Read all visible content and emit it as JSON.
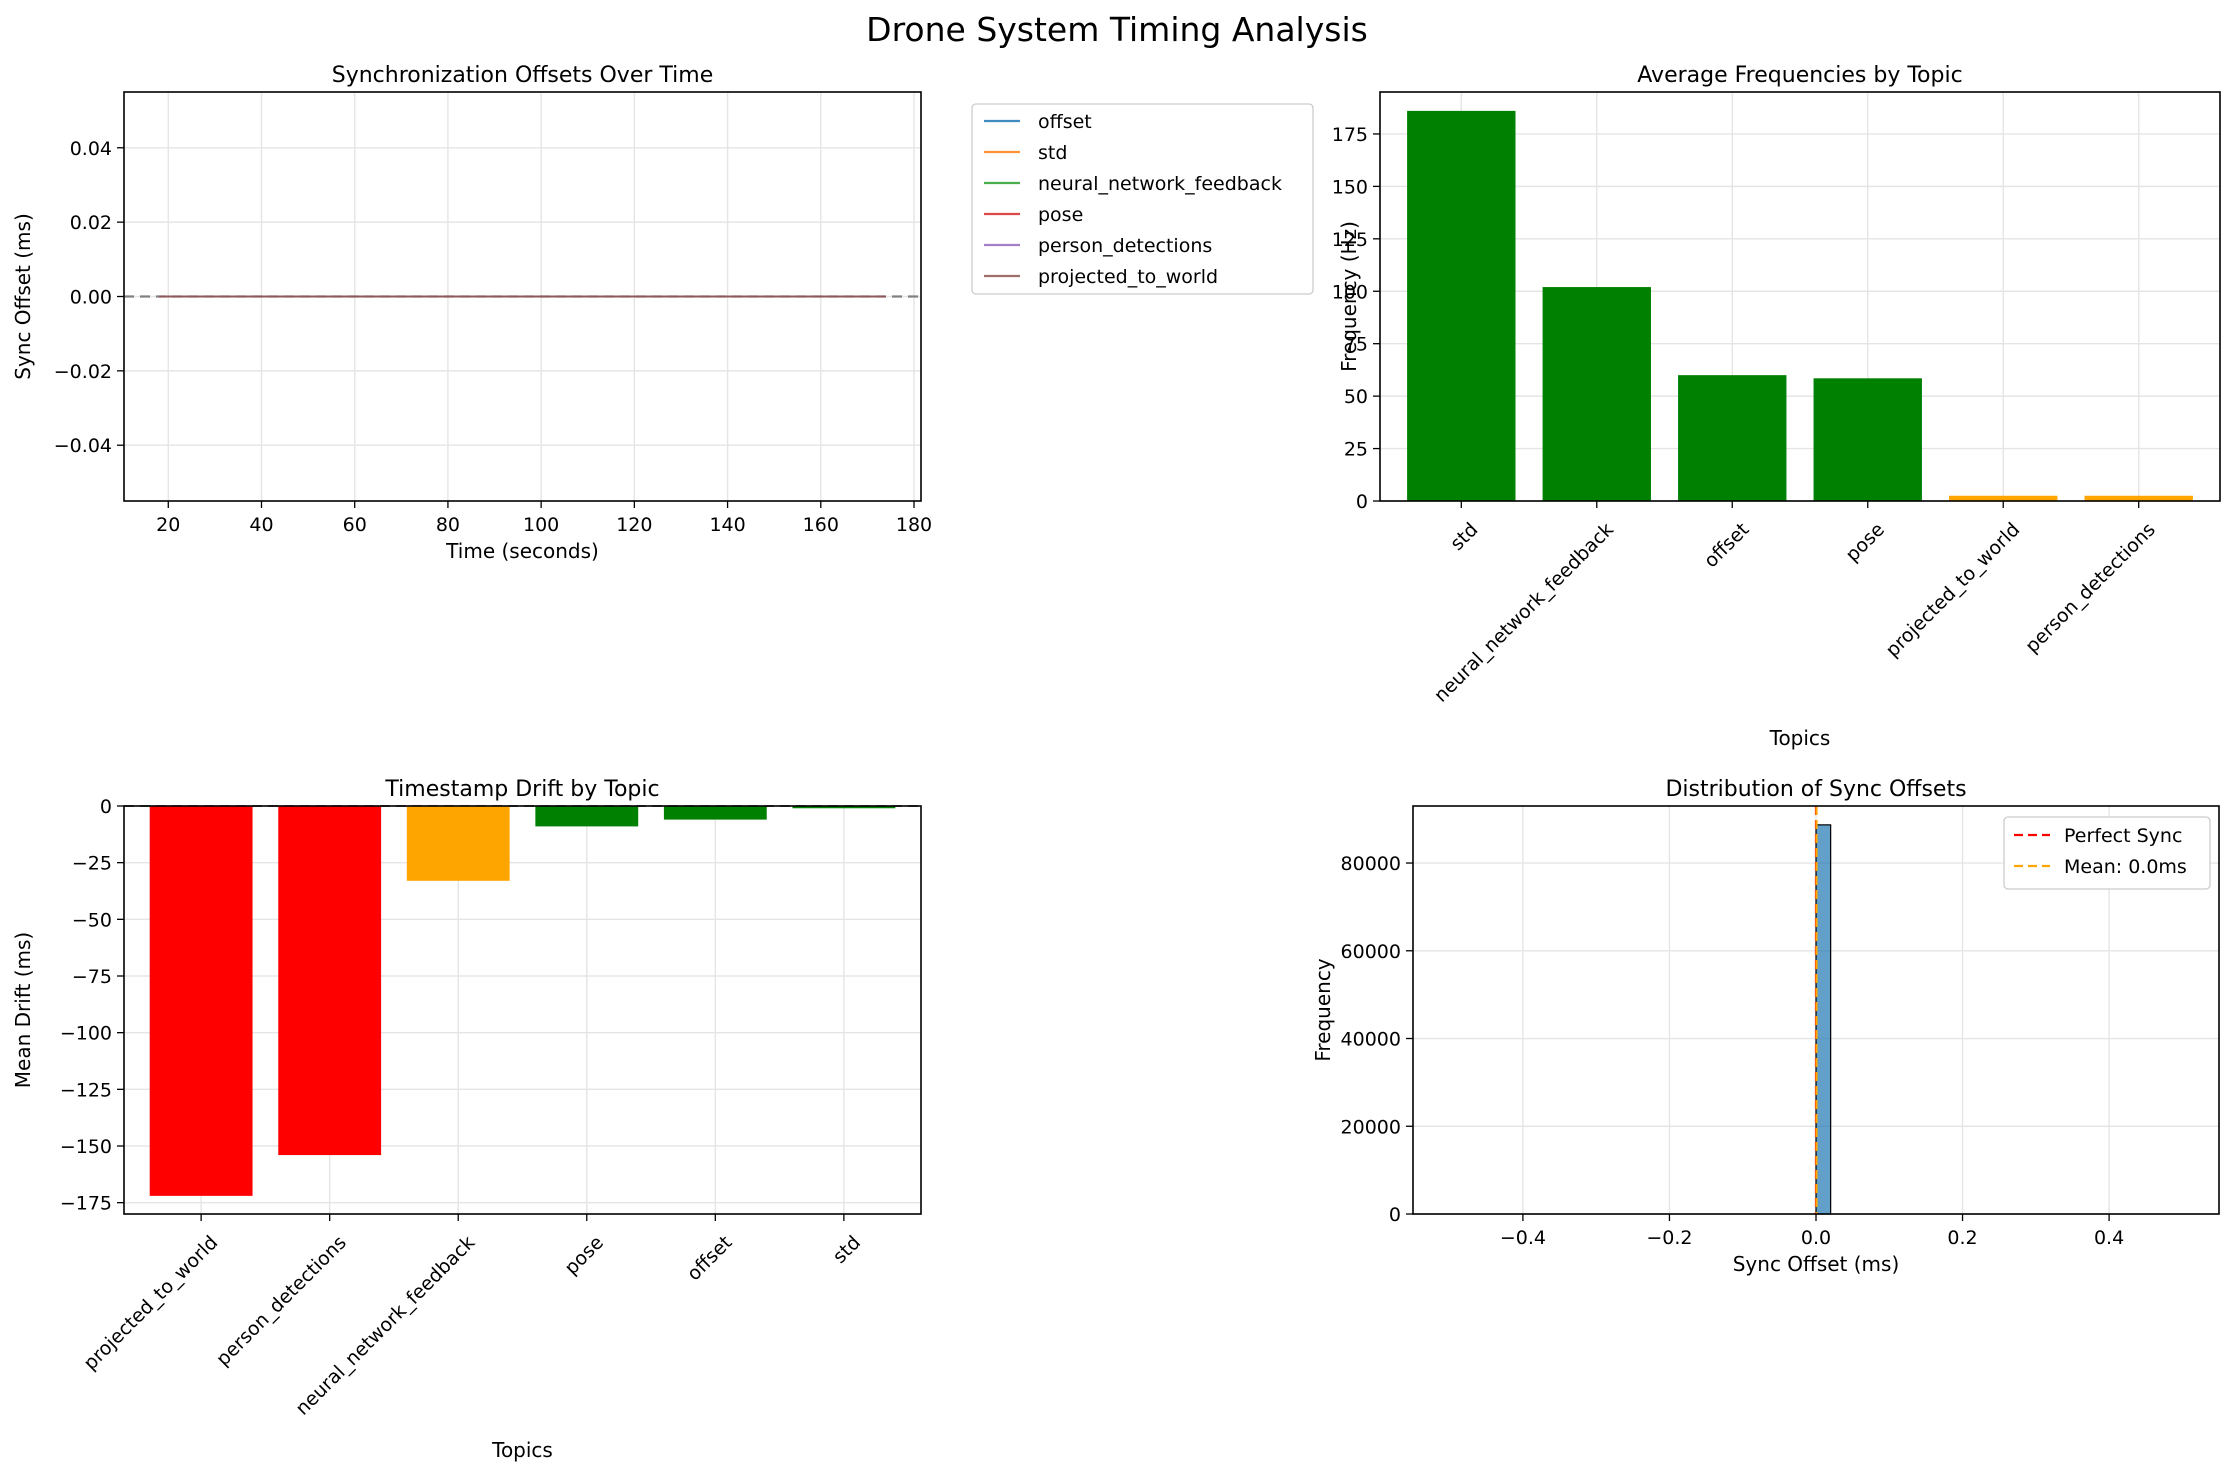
{
  "figure": {
    "title": "Drone System Timing Analysis"
  },
  "colors": {
    "green": "#008000",
    "orange": "#FFA500",
    "red": "#FF0000",
    "grid": "#e5e5e5",
    "hist": "#1f77b4"
  },
  "chart_data": [
    {
      "id": "sync_offsets",
      "type": "line",
      "title": "Synchronization Offsets Over Time",
      "xlabel": "Time (seconds)",
      "ylabel": "Sync Offset (ms)",
      "xlim": [
        10.5,
        181.5
      ],
      "ylim": [
        -0.055,
        0.055
      ],
      "xticks": [
        20,
        40,
        60,
        80,
        100,
        120,
        140,
        160,
        180
      ],
      "yticks": [
        -0.04,
        -0.02,
        0.0,
        0.02,
        0.04
      ],
      "ytick_labels": [
        "−0.04",
        "−0.02",
        "0.00",
        "0.02",
        "0.04"
      ],
      "reference_line": {
        "y": 0,
        "style": "dashed",
        "color": "#808080"
      },
      "grid": true,
      "legend": "outside-right",
      "series": [
        {
          "name": "offset",
          "color": "#1f77b4",
          "x": [
            18,
            174
          ],
          "y": [
            0,
            0
          ]
        },
        {
          "name": "std",
          "color": "#ff7f0e",
          "x": [
            18,
            174
          ],
          "y": [
            0,
            0
          ]
        },
        {
          "name": "neural_network_feedback",
          "color": "#2ca02c",
          "x": [
            18,
            174
          ],
          "y": [
            0,
            0
          ]
        },
        {
          "name": "pose",
          "color": "#d62728",
          "x": [
            18,
            174
          ],
          "y": [
            0,
            0
          ]
        },
        {
          "name": "person_detections",
          "color": "#9467bd",
          "x": [
            18,
            174
          ],
          "y": [
            0,
            0
          ]
        },
        {
          "name": "projected_to_world",
          "color": "#8c564b",
          "x": [
            18,
            174
          ],
          "y": [
            0,
            0
          ]
        }
      ]
    },
    {
      "id": "avg_freq",
      "type": "bar",
      "title": "Average Frequencies by Topic",
      "xlabel": "Topics",
      "ylabel": "Frequency (Hz)",
      "ylim": [
        0,
        195
      ],
      "yticks": [
        0,
        25,
        50,
        75,
        100,
        125,
        150,
        175
      ],
      "grid": true,
      "categories": [
        "std",
        "neural_network_feedback",
        "offset",
        "pose",
        "projected_to_world",
        "person_detections"
      ],
      "values": [
        186,
        102,
        60,
        58.5,
        2.5,
        2.5
      ],
      "bar_colors": [
        "green",
        "green",
        "green",
        "green",
        "orange",
        "orange"
      ]
    },
    {
      "id": "drift",
      "type": "bar",
      "title": "Timestamp Drift by Topic",
      "xlabel": "Topics",
      "ylabel": "Mean Drift (ms)",
      "ylim": [
        -180,
        0
      ],
      "yticks": [
        0,
        -25,
        -50,
        -75,
        -100,
        -125,
        -150,
        -175
      ],
      "ytick_labels": [
        "0",
        "−25",
        "−50",
        "−75",
        "−100",
        "−125",
        "−150",
        "−175"
      ],
      "reference_line": {
        "y": 0,
        "style": "dashed",
        "color": "#000000"
      },
      "grid": true,
      "categories": [
        "projected_to_world",
        "person_detections",
        "neural_network_feedback",
        "pose",
        "offset",
        "std"
      ],
      "values": [
        -172,
        -154,
        -33,
        -9,
        -6,
        -1
      ],
      "bar_colors": [
        "red",
        "red",
        "orange",
        "green",
        "green",
        "green"
      ]
    },
    {
      "id": "distribution",
      "type": "histogram",
      "title": "Distribution of Sync Offsets",
      "xlabel": "Sync Offset (ms)",
      "ylabel": "Frequency",
      "xlim": [
        -0.55,
        0.55
      ],
      "ylim": [
        0,
        93000
      ],
      "xticks": [
        -0.4,
        -0.2,
        0.0,
        0.2,
        0.4
      ],
      "xtick_labels": [
        "−0.4",
        "−0.2",
        "0.0",
        "0.2",
        "0.4"
      ],
      "yticks": [
        0,
        20000,
        40000,
        60000,
        80000
      ],
      "grid": true,
      "legend": "top-right",
      "bins": [
        {
          "x0": 0.0,
          "x1": 0.02,
          "count": 88700
        }
      ],
      "lines": [
        {
          "label": "Perfect Sync",
          "x": 0.0,
          "color": "#FF0000",
          "style": "dashed"
        },
        {
          "label": "Mean: 0.0ms",
          "x": 0.0,
          "color": "#FFA500",
          "style": "dashed"
        }
      ]
    }
  ]
}
